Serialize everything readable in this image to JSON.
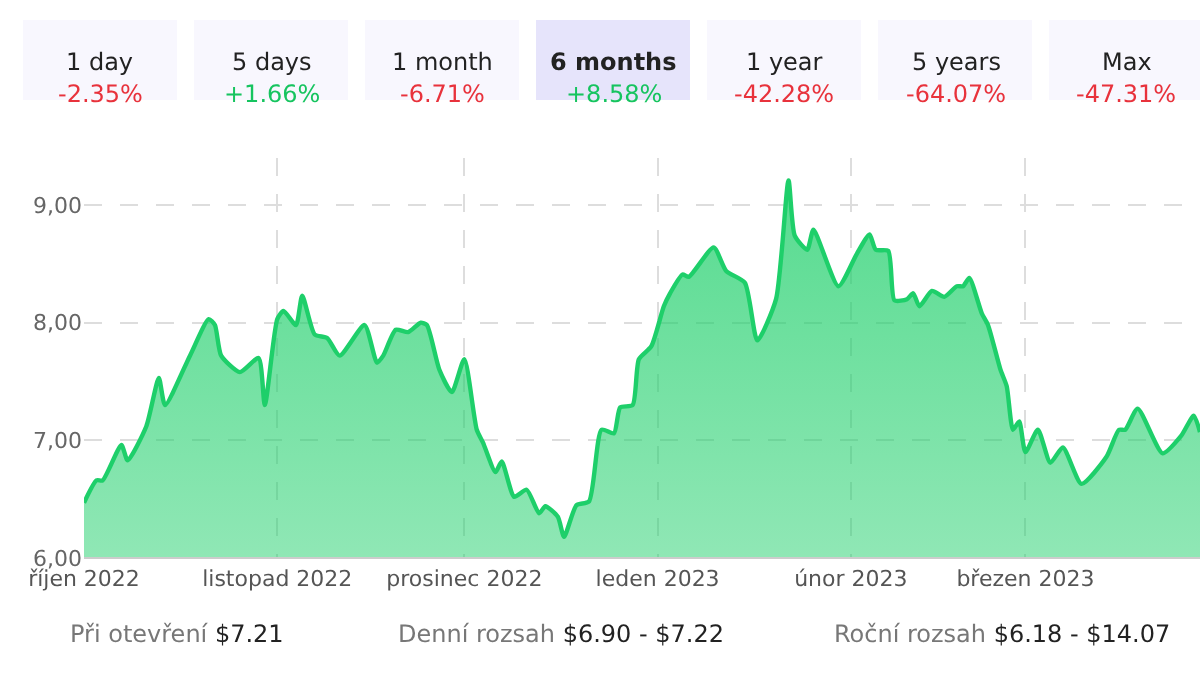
{
  "chart_data": {
    "type": "area",
    "color": "#1ecf6a",
    "x": [
      "2022-10-01",
      "2022-10-03",
      "2022-10-04",
      "2022-10-07",
      "2022-10-08",
      "2022-10-11",
      "2022-10-13",
      "2022-10-14",
      "2022-10-18",
      "2022-10-21",
      "2022-10-22",
      "2022-10-23",
      "2022-10-26",
      "2022-10-29",
      "2022-10-30",
      "2022-11-01",
      "2022-11-02",
      "2022-11-04",
      "2022-11-05",
      "2022-11-07",
      "2022-11-09",
      "2022-11-11",
      "2022-11-15",
      "2022-11-17",
      "2022-11-18",
      "2022-11-20",
      "2022-11-22",
      "2022-11-24",
      "2022-11-25",
      "2022-11-27",
      "2022-11-29",
      "2022-12-01",
      "2022-12-03",
      "2022-12-04",
      "2022-12-06",
      "2022-12-07",
      "2022-12-09",
      "2022-12-11",
      "2022-12-13",
      "2022-12-14",
      "2022-12-16",
      "2022-12-17",
      "2022-12-19",
      "2022-12-21",
      "2022-12-23",
      "2022-12-25",
      "2022-12-26",
      "2022-12-28",
      "2022-12-29",
      "2022-12-31",
      "2023-01-02",
      "2023-01-03",
      "2023-01-05",
      "2023-01-06",
      "2023-01-10",
      "2023-01-12",
      "2023-01-15",
      "2023-01-17",
      "2023-01-20",
      "2023-01-22",
      "2023-01-23",
      "2023-01-25",
      "2023-01-26",
      "2023-01-30",
      "2023-02-02",
      "2023-02-04",
      "2023-02-05",
      "2023-02-07",
      "2023-02-08",
      "2023-02-10",
      "2023-02-11",
      "2023-02-12",
      "2023-02-14",
      "2023-02-16",
      "2023-02-18",
      "2023-02-19",
      "2023-02-20",
      "2023-02-22",
      "2023-02-23",
      "2023-02-25",
      "2023-02-26",
      "2023-02-27",
      "2023-02-28",
      "2023-03-01",
      "2023-03-03",
      "2023-03-05",
      "2023-03-07",
      "2023-03-10",
      "2023-03-14",
      "2023-03-16",
      "2023-03-17",
      "2023-03-19",
      "2023-03-23",
      "2023-03-26",
      "2023-03-28",
      "2023-03-29"
    ],
    "values": [
      6.47,
      6.66,
      6.66,
      6.96,
      6.83,
      7.12,
      7.53,
      7.3,
      7.72,
      8.03,
      7.98,
      7.72,
      7.58,
      7.7,
      7.3,
      8.03,
      8.1,
      7.98,
      8.23,
      7.9,
      7.87,
      7.72,
      7.98,
      7.66,
      7.72,
      7.94,
      7.92,
      8.0,
      7.98,
      7.6,
      7.41,
      7.69,
      7.09,
      6.98,
      6.73,
      6.82,
      6.52,
      6.58,
      6.38,
      6.44,
      6.35,
      6.18,
      6.45,
      6.48,
      7.09,
      7.06,
      7.28,
      7.3,
      7.69,
      7.8,
      8.14,
      8.25,
      8.41,
      8.39,
      8.64,
      8.44,
      8.34,
      7.85,
      8.2,
      9.21,
      8.74,
      8.62,
      8.79,
      8.31,
      8.59,
      8.75,
      8.62,
      8.61,
      8.19,
      8.2,
      8.25,
      8.14,
      8.27,
      8.22,
      8.31,
      8.31,
      8.38,
      8.08,
      7.98,
      7.6,
      7.46,
      7.09,
      7.16,
      6.9,
      7.09,
      6.81,
      6.94,
      6.63,
      6.86,
      7.09,
      7.09,
      7.27,
      6.89,
      7.04,
      7.21,
      7.07
    ],
    "xlim": [
      "2022-10-01",
      "2023-03-29"
    ],
    "xticks": [
      {
        "value": "2022-10-01",
        "label": "říjen 2022"
      },
      {
        "value": "2022-11-01",
        "label": "listopad 2022"
      },
      {
        "value": "2022-12-01",
        "label": "prosinec 2022"
      },
      {
        "value": "2023-01-01",
        "label": "leden 2023"
      },
      {
        "value": "2023-02-01",
        "label": "únor 2023"
      },
      {
        "value": "2023-03-01",
        "label": "březen 2023"
      }
    ],
    "ylim": [
      6,
      9.4
    ],
    "yticks": [
      {
        "value": 6,
        "label": "6,00"
      },
      {
        "value": 7,
        "label": "7,00"
      },
      {
        "value": 8,
        "label": "8,00"
      },
      {
        "value": 9,
        "label": "9,00"
      }
    ],
    "grid": true,
    "legend": false,
    "marker": "none",
    "line_style": "solid",
    "annotations": [
      "1 day",
      "-2.35%",
      "5 days",
      "+1.66%",
      "1 month",
      "-6.71%",
      "6 months",
      "+8.58%",
      "1 year",
      "-42.28%",
      "5 years",
      "-64.07%",
      "Max",
      "-47.31%",
      "Při otevření",
      "$7.21",
      "Denní rozsah",
      "$6.90 - $7.22",
      "Roční rozsah",
      "$6.18 - $14.07"
    ]
  }
}
